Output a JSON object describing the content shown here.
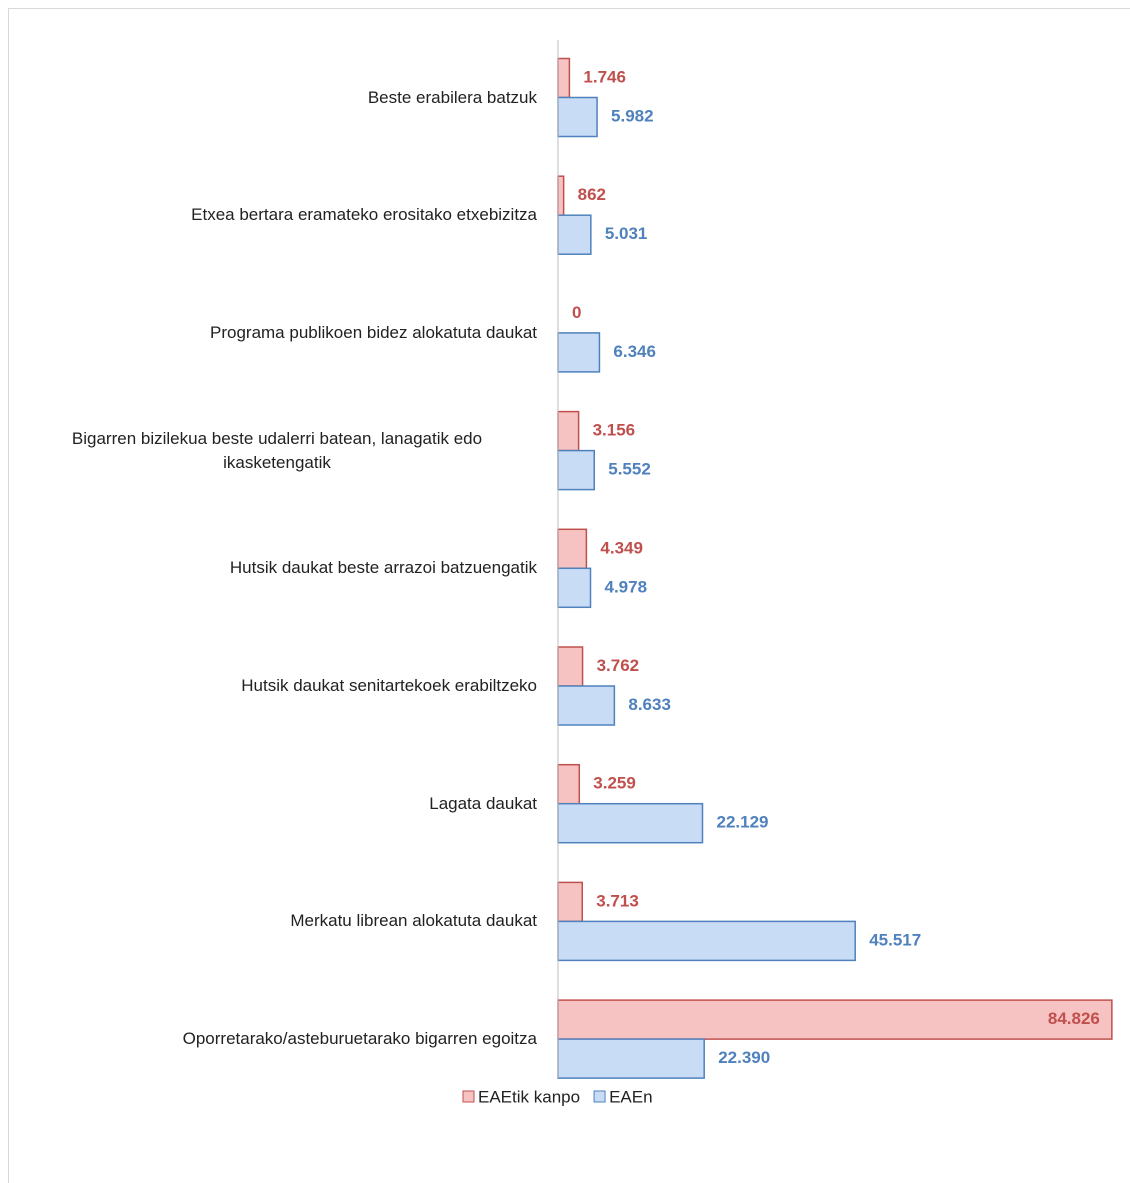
{
  "chart_data": {
    "type": "bar",
    "orientation": "horizontal",
    "categories": [
      "Beste erabilera batzuk",
      "Etxea bertara eramateko erositako etxebizitza",
      "Programa publikoen bidez alokatuta daukat",
      "Bigarren bizilekua beste udalerri batean, lanagatik edo ikasketengatik",
      "Hutsik daukat beste arrazoi batzuengatik",
      "Hutsik daukat senitartekoek erabiltzeko",
      "Lagata daukat",
      "Merkatu librean alokatuta daukat",
      "Oporretarako/asteburuetarako bigarren egoitza"
    ],
    "series": [
      {
        "name": "EAEtik kanpo",
        "color": "#c0504d",
        "fill": "#f6c3c2",
        "values": [
          1746,
          862,
          0,
          3156,
          4349,
          3762,
          3259,
          3713,
          84826
        ],
        "value_labels": [
          "1.746",
          "862",
          "0",
          "3.156",
          "4.349",
          "3.762",
          "3.259",
          "3.713",
          "84.826"
        ]
      },
      {
        "name": "EAEn",
        "color": "#4f81bd",
        "fill": "#c9dcf5",
        "values": [
          5982,
          5031,
          6346,
          5552,
          4978,
          8633,
          22129,
          45517,
          22390
        ],
        "value_labels": [
          "5.982",
          "5.031",
          "6.346",
          "5.552",
          "4.978",
          "8.633",
          "22.129",
          "45.517",
          "22.390"
        ]
      }
    ],
    "xlim": [
      0,
      85000
    ],
    "legend": "bottom"
  }
}
